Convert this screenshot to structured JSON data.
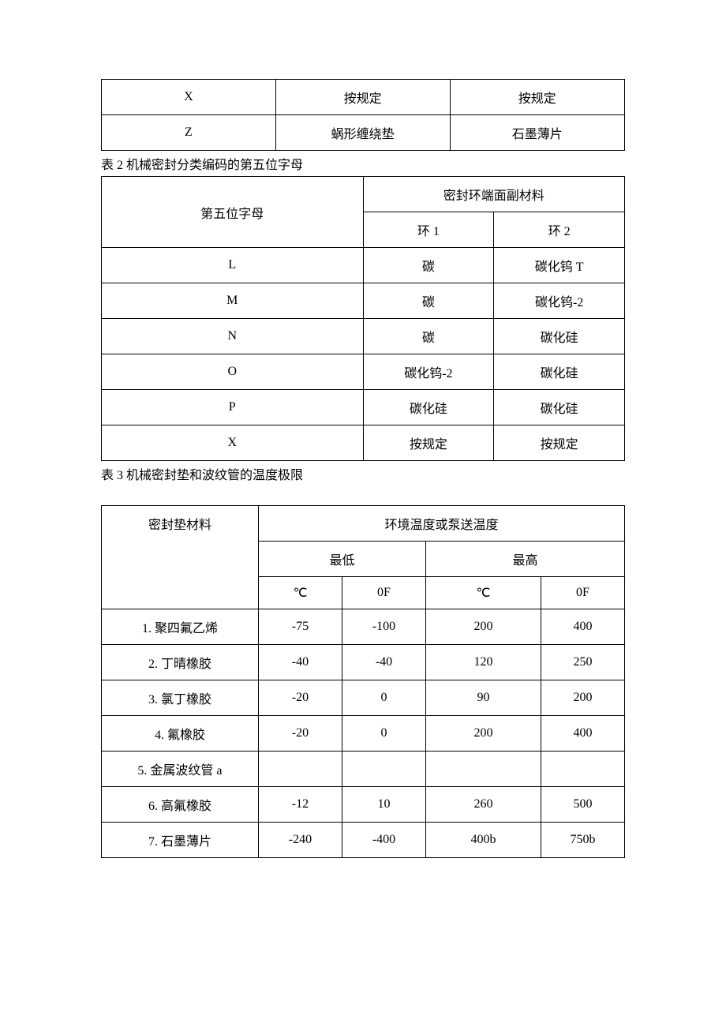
{
  "table1": {
    "rows": [
      {
        "col1": "X",
        "col2": "按规定",
        "col3": "按规定"
      },
      {
        "col1": "Z",
        "col2": "蜗形缠绕垫",
        "col3": "石墨薄片"
      }
    ]
  },
  "caption2": "表 2 机械密封分类编码的第五位字母",
  "table2": {
    "header": {
      "col1": "第五位字母",
      "col_span": "密封环端面副材料",
      "sub1": "环 1",
      "sub2": "环 2"
    },
    "rows": [
      {
        "c1": "L",
        "c2": "碳",
        "c3": "碳化钨 T"
      },
      {
        "c1": "M",
        "c2": "碳",
        "c3": "碳化钨-2"
      },
      {
        "c1": "N",
        "c2": "碳",
        "c3": "碳化硅"
      },
      {
        "c1": "O",
        "c2": "碳化钨-2",
        "c3": "碳化硅"
      },
      {
        "c1": "P",
        "c2": "碳化硅",
        "c3": "碳化硅"
      },
      {
        "c1": "X",
        "c2": "按规定",
        "c3": "按规定"
      }
    ]
  },
  "caption3": "表 3 机械密封垫和波纹管的温度极限",
  "table3": {
    "header": {
      "col1": "密封垫材料",
      "col_span": "环境温度或泵送温度",
      "sub_low": "最低",
      "sub_high": "最高",
      "unit_c": "℃",
      "unit_f": "0F"
    },
    "rows": [
      {
        "name": "1. 聚四氟乙烯",
        "low_c": "-75",
        "low_f": "-100",
        "hi_c": "200",
        "hi_f": "400"
      },
      {
        "name": "2. 丁晴橡胶",
        "low_c": "-40",
        "low_f": "-40",
        "hi_c": "120",
        "hi_f": "250"
      },
      {
        "name": "3. 氯丁橡胶",
        "low_c": "-20",
        "low_f": "0",
        "hi_c": "90",
        "hi_f": "200"
      },
      {
        "name": "4. 氟橡胶",
        "low_c": "-20",
        "low_f": "0",
        "hi_c": "200",
        "hi_f": "400"
      },
      {
        "name": "5. 金属波纹管 a",
        "low_c": "",
        "low_f": "",
        "hi_c": "",
        "hi_f": ""
      },
      {
        "name": "6. 高氟橡胶",
        "low_c": "-12",
        "low_f": "10",
        "hi_c": "260",
        "hi_f": "500"
      },
      {
        "name": "7. 石墨薄片",
        "low_c": "-240",
        "low_f": "-400",
        "hi_c": "400b",
        "hi_f": "750b"
      }
    ]
  }
}
